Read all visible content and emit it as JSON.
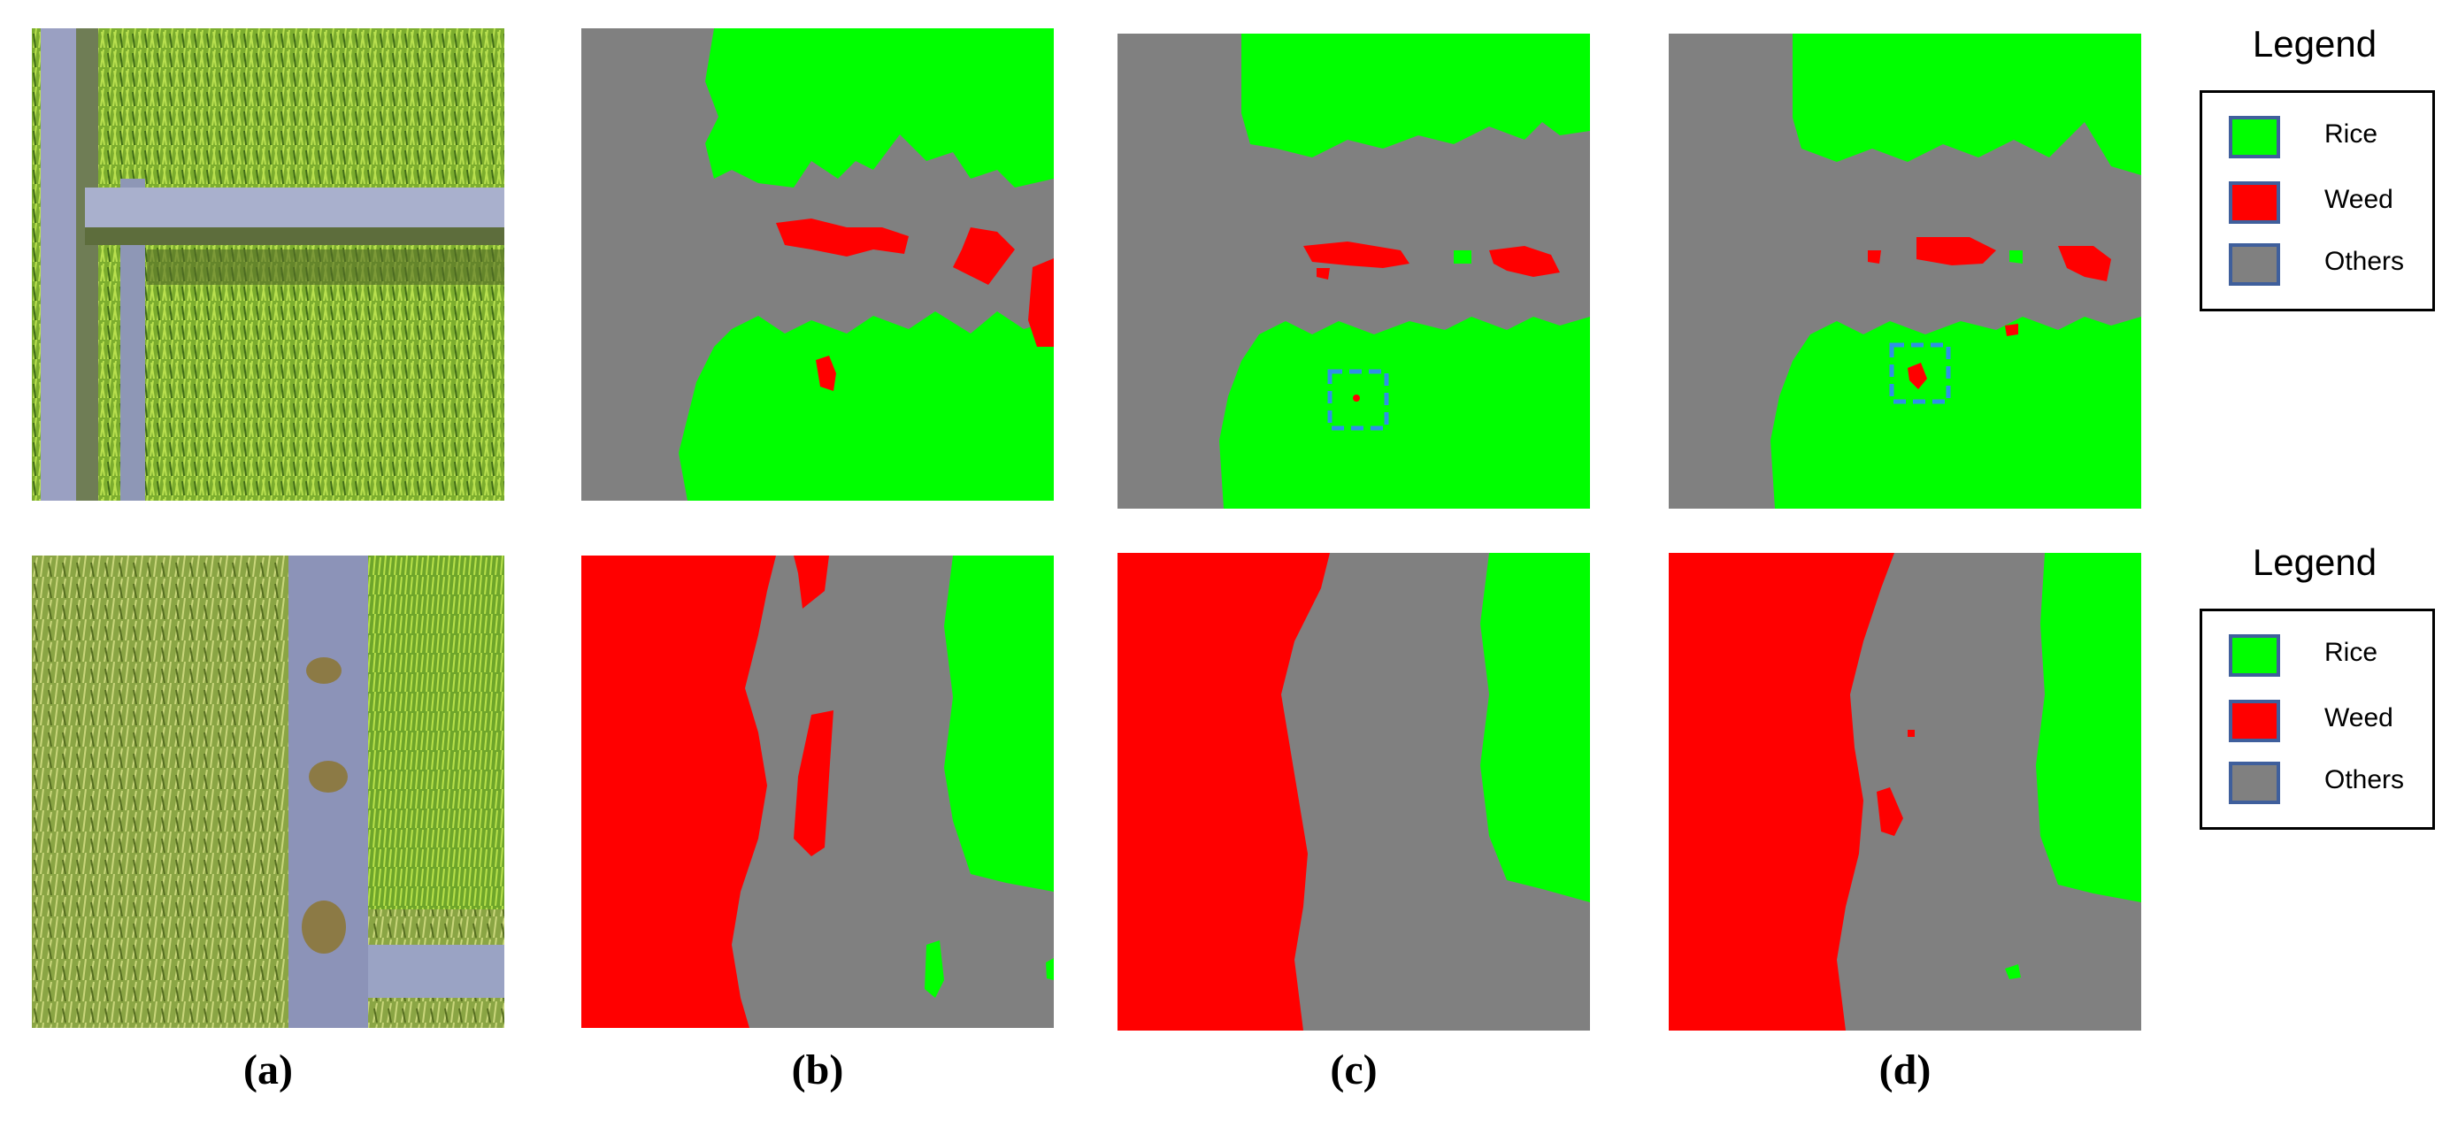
{
  "captions": [
    "(a)",
    "(b)",
    "(c)",
    "(d)"
  ],
  "colors": {
    "rice": "#00ff00",
    "weed": "#ff0000",
    "others": "#808080",
    "highlight_box": "#2f8fe8"
  },
  "legends": [
    {
      "title": "Legend",
      "items": [
        {
          "label": "Rice",
          "color": "#00ff00"
        },
        {
          "label": "Weed",
          "color": "#ff0000"
        },
        {
          "label": "Others",
          "color": "#808080"
        }
      ]
    },
    {
      "title": "Legend",
      "items": [
        {
          "label": "Rice",
          "color": "#00ff00"
        },
        {
          "label": "Weed",
          "color": "#ff0000"
        },
        {
          "label": "Others",
          "color": "#808080"
        }
      ]
    }
  ]
}
